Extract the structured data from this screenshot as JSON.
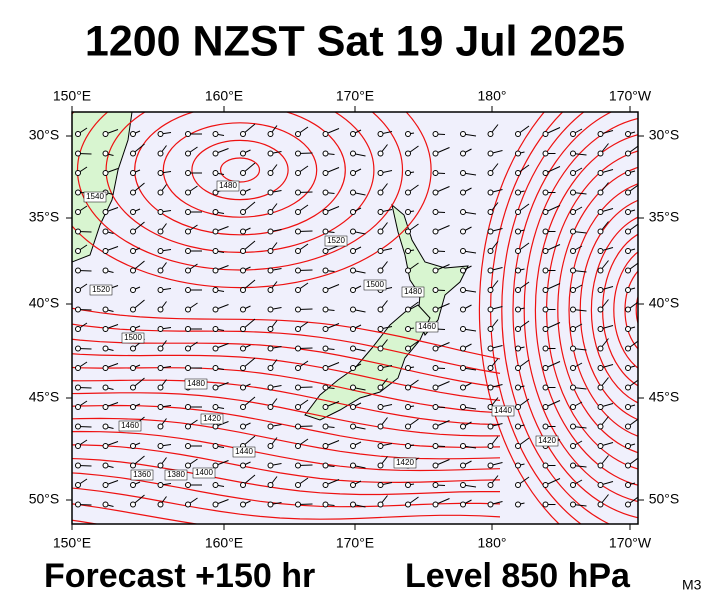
{
  "title": "1200 NZST Sat 19 Jul 2025",
  "axes": {
    "top": [
      "150°E",
      "160°E",
      "170°E",
      "180°",
      "170°W"
    ],
    "bottom": [
      "150°E",
      "160°E",
      "170°E",
      "180°",
      "170°W"
    ],
    "left": [
      "30°S",
      "35°S",
      "40°S",
      "45°S",
      "50°S"
    ],
    "right": [
      "30°S",
      "35°S",
      "40°S",
      "45°S",
      "50°S"
    ]
  },
  "contour_labels": [
    "1480",
    "1540",
    "1520",
    "1520",
    "1500",
    "1480",
    "1460",
    "1500",
    "1480",
    "1420",
    "1460",
    "1440",
    "1360",
    "1380",
    "1400",
    "1420",
    "1440",
    "1420"
  ],
  "footer": {
    "forecast": "Forecast +150 hr",
    "level": "Level 850 hPa",
    "model": "M3"
  }
}
